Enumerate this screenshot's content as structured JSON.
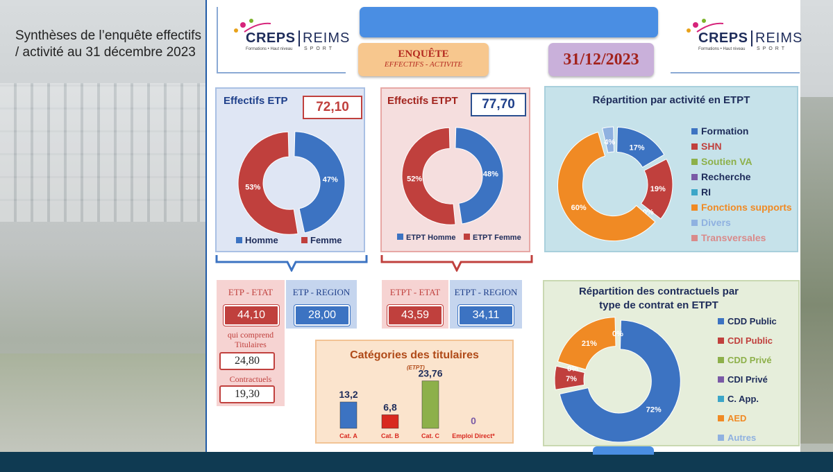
{
  "intro": {
    "text": "Synthèses de l’enquête effectifs / activité au 31 décembre 2023"
  },
  "logo": {
    "brand": "CREPS",
    "brand2": "REIMS",
    "tagline": "Formations • Haut niveau",
    "tagline2": "SPORT"
  },
  "header": {
    "enquete_line1": "ENQUÊTE",
    "enquete_line2": "EFFECTIFS - ACTIVITE",
    "date": "31/12/2023"
  },
  "colors": {
    "blue": "#3c73c2",
    "red": "#c0403d",
    "green": "#8db04a",
    "purple": "#7a5aa6",
    "teal": "#3ca6c8",
    "orange": "#f08a24",
    "lightblue": "#8fb1e0",
    "pink": "#d98a8a"
  },
  "etp": {
    "title": "Effectifs ETP",
    "total": "72,10",
    "legend_homme": "Homme",
    "legend_femme": "Femme",
    "etat_label": "ETP - ETAT",
    "region_label": "ETP - REGION",
    "etat_value": "44,10",
    "region_value": "28,00",
    "qui_comprend": "qui comprend",
    "titulaires": "Titulaires",
    "titulaires_value": "24,80",
    "contractuels": "Contractuels",
    "contractuels_value": "19,30"
  },
  "etpt": {
    "title": "Effectifs ETPT",
    "total": "77,70",
    "legend_homme": "ETPT Homme",
    "legend_femme": "ETPT Femme",
    "etat_label": "ETPT - ETAT",
    "region_label": "ETPT - REGION",
    "etat_value": "43,59",
    "region_value": "34,11"
  },
  "activite": {
    "title": "Répartition par activité en ETPT",
    "legend": [
      "Formation",
      "SHN",
      "Soutien VA",
      "Recherche",
      "RI",
      "Fonctions supports",
      "Divers",
      "Transversales"
    ]
  },
  "contrats": {
    "title_line1": "Répartition des contractuels par",
    "title_line2": "type de contrat en ETPT",
    "legend": [
      "CDD Public",
      "CDI Public",
      "CDD Privé",
      "CDI Privé",
      "C. App.",
      "AED",
      "Autres"
    ]
  },
  "categories": {
    "title": "Catégories des  titulaires",
    "unit": "(ETPT)"
  },
  "chart_data": [
    {
      "type": "pie",
      "title": "Effectifs ETP",
      "categories": [
        "Homme",
        "Femme"
      ],
      "values": [
        47,
        53
      ],
      "labels": [
        "47%",
        "53%"
      ]
    },
    {
      "type": "pie",
      "title": "Effectifs ETPT",
      "categories": [
        "ETPT Homme",
        "ETPT Femme"
      ],
      "values": [
        48,
        52
      ],
      "labels": [
        "48%",
        "52%"
      ]
    },
    {
      "type": "pie",
      "title": "Répartition par activité en ETPT",
      "categories": [
        "Formation",
        "SHN",
        "Soutien VA",
        "Recherche",
        "RI",
        "Fonctions supports",
        "Divers",
        "Transversales"
      ],
      "values": [
        17,
        19,
        0,
        0,
        0,
        60,
        4,
        0
      ],
      "labels": [
        "17%",
        "19%",
        "0%",
        "",
        "",
        "60%",
        "4%",
        ""
      ]
    },
    {
      "type": "pie",
      "title": "Répartition des contractuels par type de contrat en ETPT",
      "categories": [
        "CDD Public",
        "CDI Public",
        "CDD Privé",
        "CDI Privé",
        "C. App.",
        "AED",
        "Autres"
      ],
      "values": [
        72,
        7,
        0,
        0,
        0,
        21,
        0
      ],
      "labels": [
        "72%",
        "7%",
        "0%",
        "",
        "",
        "21%",
        "0%"
      ]
    },
    {
      "type": "bar",
      "title": "Catégories des  titulaires",
      "categories": [
        "Cat. A",
        "Cat. B",
        "Cat. C",
        "Emploi Direct*"
      ],
      "values": [
        13.2,
        6.8,
        23.76,
        0
      ],
      "labels": [
        "13,2",
        "6,8",
        "23,76",
        "0"
      ],
      "ylim": [
        0,
        25
      ]
    }
  ]
}
